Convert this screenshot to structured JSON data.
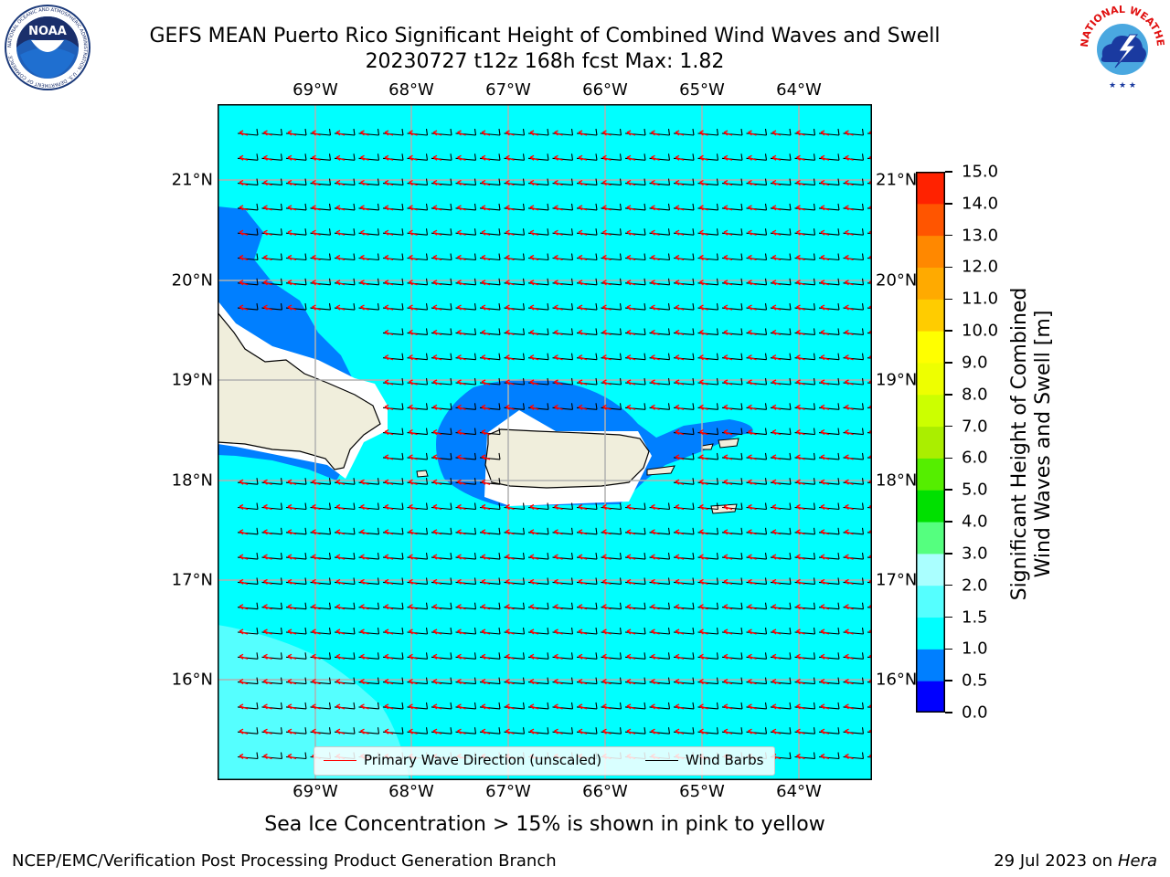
{
  "title": {
    "line1": "GEFS MEAN Puerto Rico Significant Height of Combined Wind Waves and Swell",
    "line2": "20230727 t12z 168h fcst   Max: 1.82"
  },
  "map": {
    "lon_labels": [
      "69°W",
      "68°W",
      "67°W",
      "66°W",
      "65°W",
      "64°W"
    ],
    "lat_labels": [
      "21°N",
      "20°N",
      "19°N",
      "18°N",
      "17°N",
      "16°N"
    ],
    "extent": {
      "lon": [
        -70.0,
        -63.25
      ],
      "lat": [
        15.0,
        21.75
      ]
    },
    "field_colors": {
      "sea_main": "#00ffff",
      "near_coast": "#007fff",
      "deep_low": "#0000ff",
      "south_light": "#55ffff",
      "land": "#f0eedc",
      "gridline": "#b0b0b0"
    }
  },
  "legend": {
    "wave_label": "Primary Wave Direction (unscaled)",
    "wind_label": "Wind Barbs",
    "wave_color": "#ff0000",
    "wind_color": "#000000"
  },
  "colorbar": {
    "label_line1": "Significant Height of Combined",
    "label_line2": "Wind Waves and Swell [m]",
    "ticks": [
      "0.0",
      "0.5",
      "1.0",
      "1.5",
      "2.0",
      "3.0",
      "4.0",
      "5.0",
      "6.0",
      "7.0",
      "8.0",
      "9.0",
      "10.0",
      "11.0",
      "12.0",
      "13.0",
      "14.0",
      "15.0"
    ],
    "colors": [
      "#0000ff",
      "#007fff",
      "#00ffff",
      "#55ffff",
      "#aaffff",
      "#55ff7f",
      "#00e000",
      "#55ee00",
      "#aaee00",
      "#ccff00",
      "#eeff00",
      "#ffff00",
      "#ffcc00",
      "#ffaa00",
      "#ff8800",
      "#ff5500",
      "#ff2200"
    ]
  },
  "subcaption": "Sea Ice Concentration > 15% is shown in pink to yellow",
  "footer": {
    "left": "NCEP/EMC/Verification Post Processing Product Generation Branch",
    "right_date": "29 Jul 2023 on ",
    "right_host": "Hera"
  },
  "logos": {
    "noaa_text": "NOAA",
    "noaa_ring": "NATIONAL OCEANIC AND ATMOSPHERIC ADMINISTRATION · U.S. DEPARTMENT OF COMMERCE ·",
    "nws_ring": "NATIONAL WEATHER SERVICE"
  }
}
